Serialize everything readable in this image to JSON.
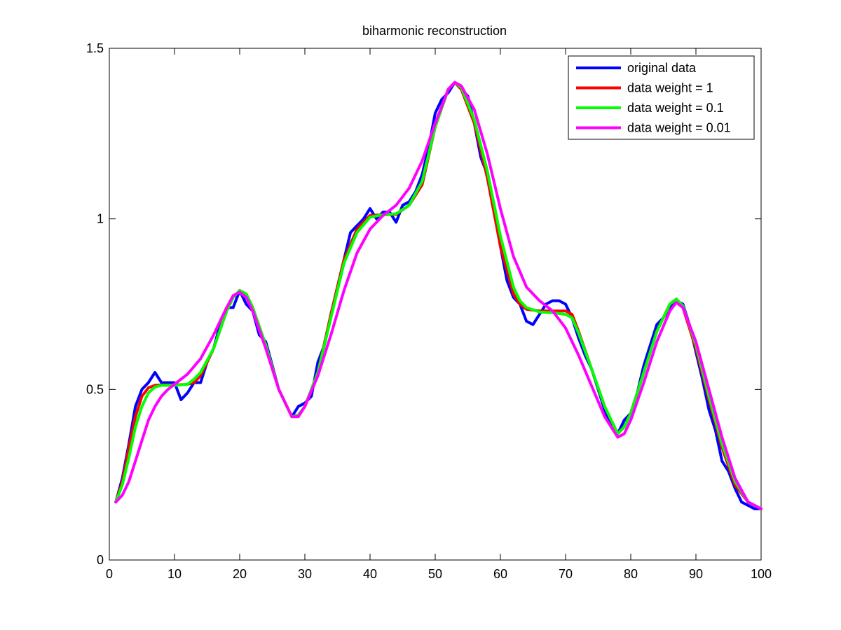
{
  "chart_data": {
    "type": "line",
    "title": "biharmonic reconstruction",
    "xlabel": "",
    "ylabel": "",
    "xlim": [
      0,
      100
    ],
    "ylim": [
      0,
      1.5
    ],
    "xticks": [
      0,
      10,
      20,
      30,
      40,
      50,
      60,
      70,
      80,
      90,
      100
    ],
    "yticks": [
      0,
      0.5,
      1,
      1.5
    ],
    "xtick_labels": [
      "0",
      "10",
      "20",
      "30",
      "40",
      "50",
      "60",
      "70",
      "80",
      "90",
      "100"
    ],
    "ytick_labels": [
      "0",
      "0.5",
      "1",
      "1.5"
    ],
    "grid": false,
    "legend_position": "top-right",
    "series": [
      {
        "name": "original data",
        "color": "#0000ff",
        "points": [
          [
            1,
            0.17
          ],
          [
            2,
            0.24
          ],
          [
            3,
            0.34
          ],
          [
            4,
            0.45
          ],
          [
            5,
            0.5
          ],
          [
            6,
            0.52
          ],
          [
            7,
            0.55
          ],
          [
            8,
            0.52
          ],
          [
            9,
            0.52
          ],
          [
            10,
            0.52
          ],
          [
            11,
            0.47
          ],
          [
            12,
            0.49
          ],
          [
            13,
            0.52
          ],
          [
            14,
            0.52
          ],
          [
            15,
            0.58
          ],
          [
            16,
            0.62
          ],
          [
            17,
            0.69
          ],
          [
            18,
            0.74
          ],
          [
            19,
            0.74
          ],
          [
            20,
            0.79
          ],
          [
            21,
            0.75
          ],
          [
            22,
            0.73
          ],
          [
            23,
            0.66
          ],
          [
            24,
            0.64
          ],
          [
            25,
            0.57
          ],
          [
            26,
            0.5
          ],
          [
            27,
            0.46
          ],
          [
            28,
            0.42
          ],
          [
            29,
            0.45
          ],
          [
            30,
            0.46
          ],
          [
            31,
            0.48
          ],
          [
            32,
            0.58
          ],
          [
            33,
            0.63
          ],
          [
            34,
            0.72
          ],
          [
            35,
            0.8
          ],
          [
            36,
            0.88
          ],
          [
            37,
            0.96
          ],
          [
            38,
            0.98
          ],
          [
            39,
            1.0
          ],
          [
            40,
            1.03
          ],
          [
            41,
            1.0
          ],
          [
            42,
            1.02
          ],
          [
            43,
            1.02
          ],
          [
            44,
            0.99
          ],
          [
            45,
            1.04
          ],
          [
            46,
            1.05
          ],
          [
            47,
            1.08
          ],
          [
            48,
            1.13
          ],
          [
            49,
            1.21
          ],
          [
            50,
            1.31
          ],
          [
            51,
            1.35
          ],
          [
            52,
            1.37
          ],
          [
            53,
            1.4
          ],
          [
            54,
            1.38
          ],
          [
            55,
            1.36
          ],
          [
            56,
            1.28
          ],
          [
            57,
            1.18
          ],
          [
            58,
            1.13
          ],
          [
            59,
            1.03
          ],
          [
            60,
            0.92
          ],
          [
            61,
            0.82
          ],
          [
            62,
            0.77
          ],
          [
            63,
            0.75
          ],
          [
            64,
            0.7
          ],
          [
            65,
            0.69
          ],
          [
            66,
            0.72
          ],
          [
            67,
            0.75
          ],
          [
            68,
            0.76
          ],
          [
            69,
            0.76
          ],
          [
            70,
            0.75
          ],
          [
            71,
            0.71
          ],
          [
            72,
            0.65
          ],
          [
            73,
            0.6
          ],
          [
            74,
            0.56
          ],
          [
            75,
            0.5
          ],
          [
            76,
            0.44
          ],
          [
            77,
            0.39
          ],
          [
            78,
            0.37
          ],
          [
            79,
            0.41
          ],
          [
            80,
            0.43
          ],
          [
            81,
            0.49
          ],
          [
            82,
            0.57
          ],
          [
            83,
            0.63
          ],
          [
            84,
            0.69
          ],
          [
            85,
            0.71
          ],
          [
            86,
            0.74
          ],
          [
            87,
            0.76
          ],
          [
            88,
            0.75
          ],
          [
            89,
            0.69
          ],
          [
            90,
            0.61
          ],
          [
            91,
            0.53
          ],
          [
            92,
            0.44
          ],
          [
            93,
            0.38
          ],
          [
            94,
            0.29
          ],
          [
            95,
            0.26
          ],
          [
            96,
            0.21
          ],
          [
            97,
            0.17
          ],
          [
            98,
            0.16
          ],
          [
            99,
            0.15
          ],
          [
            100,
            0.15
          ]
        ]
      },
      {
        "name": "data weight = 1",
        "color": "#ff0000",
        "points": [
          [
            1,
            0.17
          ],
          [
            2,
            0.23
          ],
          [
            3,
            0.33
          ],
          [
            4,
            0.42
          ],
          [
            5,
            0.48
          ],
          [
            6,
            0.505
          ],
          [
            7,
            0.512
          ],
          [
            8,
            0.513
          ],
          [
            10,
            0.513
          ],
          [
            12,
            0.515
          ],
          [
            13,
            0.52
          ],
          [
            14,
            0.54
          ],
          [
            16,
            0.62
          ],
          [
            18,
            0.73
          ],
          [
            19,
            0.77
          ],
          [
            20,
            0.79
          ],
          [
            21,
            0.78
          ],
          [
            22,
            0.74
          ],
          [
            24,
            0.63
          ],
          [
            26,
            0.5
          ],
          [
            28,
            0.42
          ],
          [
            29,
            0.425
          ],
          [
            30,
            0.45
          ],
          [
            32,
            0.55
          ],
          [
            34,
            0.72
          ],
          [
            36,
            0.88
          ],
          [
            38,
            0.97
          ],
          [
            40,
            1.01
          ],
          [
            42,
            1.012
          ],
          [
            44,
            1.013
          ],
          [
            46,
            1.04
          ],
          [
            48,
            1.1
          ],
          [
            50,
            1.27
          ],
          [
            52,
            1.38
          ],
          [
            53,
            1.4
          ],
          [
            54,
            1.38
          ],
          [
            56,
            1.28
          ],
          [
            58,
            1.12
          ],
          [
            60,
            0.92
          ],
          [
            62,
            0.78
          ],
          [
            63,
            0.75
          ],
          [
            64,
            0.735
          ],
          [
            66,
            0.73
          ],
          [
            68,
            0.73
          ],
          [
            70,
            0.73
          ],
          [
            71,
            0.72
          ],
          [
            72,
            0.67
          ],
          [
            74,
            0.56
          ],
          [
            76,
            0.45
          ],
          [
            78,
            0.37
          ],
          [
            79,
            0.39
          ],
          [
            80,
            0.43
          ],
          [
            82,
            0.55
          ],
          [
            84,
            0.67
          ],
          [
            86,
            0.75
          ],
          [
            87,
            0.765
          ],
          [
            88,
            0.74
          ],
          [
            90,
            0.62
          ],
          [
            92,
            0.47
          ],
          [
            94,
            0.33
          ],
          [
            96,
            0.22
          ],
          [
            98,
            0.17
          ],
          [
            100,
            0.15
          ]
        ]
      },
      {
        "name": "data weight = 0.1",
        "color": "#00ff00",
        "points": [
          [
            1,
            0.17
          ],
          [
            2,
            0.22
          ],
          [
            3,
            0.3
          ],
          [
            4,
            0.39
          ],
          [
            5,
            0.45
          ],
          [
            6,
            0.49
          ],
          [
            7,
            0.507
          ],
          [
            8,
            0.512
          ],
          [
            10,
            0.512
          ],
          [
            12,
            0.515
          ],
          [
            13,
            0.53
          ],
          [
            14,
            0.55
          ],
          [
            16,
            0.62
          ],
          [
            18,
            0.73
          ],
          [
            19,
            0.77
          ],
          [
            20,
            0.79
          ],
          [
            21,
            0.78
          ],
          [
            22,
            0.74
          ],
          [
            24,
            0.63
          ],
          [
            26,
            0.5
          ],
          [
            28,
            0.42
          ],
          [
            29,
            0.425
          ],
          [
            30,
            0.45
          ],
          [
            32,
            0.55
          ],
          [
            34,
            0.71
          ],
          [
            36,
            0.87
          ],
          [
            38,
            0.96
          ],
          [
            40,
            1.005
          ],
          [
            42,
            1.012
          ],
          [
            44,
            1.015
          ],
          [
            46,
            1.04
          ],
          [
            48,
            1.11
          ],
          [
            50,
            1.27
          ],
          [
            52,
            1.38
          ],
          [
            53,
            1.4
          ],
          [
            54,
            1.385
          ],
          [
            56,
            1.29
          ],
          [
            58,
            1.14
          ],
          [
            60,
            0.95
          ],
          [
            62,
            0.8
          ],
          [
            63,
            0.76
          ],
          [
            64,
            0.74
          ],
          [
            66,
            0.727
          ],
          [
            68,
            0.725
          ],
          [
            70,
            0.72
          ],
          [
            71,
            0.71
          ],
          [
            72,
            0.665
          ],
          [
            74,
            0.56
          ],
          [
            76,
            0.45
          ],
          [
            78,
            0.37
          ],
          [
            79,
            0.39
          ],
          [
            80,
            0.43
          ],
          [
            82,
            0.55
          ],
          [
            84,
            0.67
          ],
          [
            86,
            0.75
          ],
          [
            87,
            0.765
          ],
          [
            88,
            0.745
          ],
          [
            90,
            0.63
          ],
          [
            92,
            0.48
          ],
          [
            94,
            0.34
          ],
          [
            96,
            0.23
          ],
          [
            98,
            0.17
          ],
          [
            100,
            0.15
          ]
        ]
      },
      {
        "name": "data weight = 0.01",
        "color": "#ff00ff",
        "points": [
          [
            1,
            0.17
          ],
          [
            2,
            0.19
          ],
          [
            3,
            0.23
          ],
          [
            4,
            0.29
          ],
          [
            5,
            0.35
          ],
          [
            6,
            0.41
          ],
          [
            7,
            0.45
          ],
          [
            8,
            0.48
          ],
          [
            9,
            0.5
          ],
          [
            10,
            0.515
          ],
          [
            12,
            0.545
          ],
          [
            14,
            0.59
          ],
          [
            16,
            0.66
          ],
          [
            18,
            0.74
          ],
          [
            19,
            0.775
          ],
          [
            20,
            0.785
          ],
          [
            21,
            0.77
          ],
          [
            22,
            0.73
          ],
          [
            24,
            0.62
          ],
          [
            26,
            0.5
          ],
          [
            28,
            0.42
          ],
          [
            29,
            0.42
          ],
          [
            30,
            0.45
          ],
          [
            32,
            0.54
          ],
          [
            34,
            0.66
          ],
          [
            36,
            0.79
          ],
          [
            38,
            0.9
          ],
          [
            40,
            0.97
          ],
          [
            42,
            1.01
          ],
          [
            44,
            1.04
          ],
          [
            46,
            1.09
          ],
          [
            48,
            1.17
          ],
          [
            50,
            1.28
          ],
          [
            52,
            1.38
          ],
          [
            53,
            1.4
          ],
          [
            54,
            1.39
          ],
          [
            56,
            1.32
          ],
          [
            58,
            1.19
          ],
          [
            60,
            1.03
          ],
          [
            62,
            0.89
          ],
          [
            64,
            0.8
          ],
          [
            66,
            0.76
          ],
          [
            68,
            0.73
          ],
          [
            70,
            0.68
          ],
          [
            72,
            0.6
          ],
          [
            74,
            0.51
          ],
          [
            76,
            0.42
          ],
          [
            78,
            0.36
          ],
          [
            79,
            0.37
          ],
          [
            80,
            0.41
          ],
          [
            82,
            0.52
          ],
          [
            84,
            0.64
          ],
          [
            86,
            0.73
          ],
          [
            87,
            0.755
          ],
          [
            88,
            0.74
          ],
          [
            90,
            0.64
          ],
          [
            92,
            0.5
          ],
          [
            94,
            0.36
          ],
          [
            96,
            0.24
          ],
          [
            98,
            0.17
          ],
          [
            100,
            0.15
          ]
        ]
      }
    ]
  }
}
